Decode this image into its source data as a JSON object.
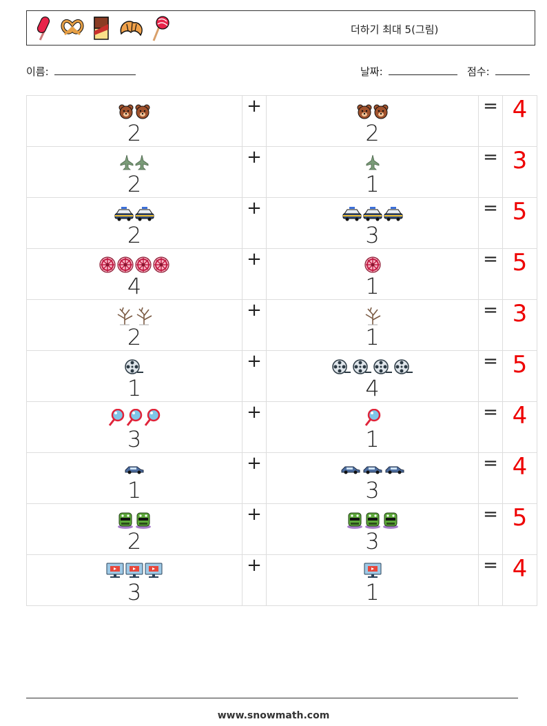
{
  "header": {
    "title": "더하기 최대 5(그림)",
    "icons": [
      "popsicle-icon",
      "pretzel-icon",
      "chocolate-icon",
      "croissant-icon",
      "lollipop-icon"
    ]
  },
  "meta": {
    "name_label": "이름:",
    "date_label": "날짜:",
    "score_label": "점수:"
  },
  "operators": {
    "plus": "+",
    "equals": "="
  },
  "colors": {
    "answer": "#e00000",
    "grid": "#dddddd"
  },
  "problems": [
    {
      "icon": "bear",
      "a": "2",
      "b": "2",
      "answer": "4"
    },
    {
      "icon": "jet",
      "a": "2",
      "b": "1",
      "answer": "3"
    },
    {
      "icon": "police-car",
      "a": "2",
      "b": "3",
      "answer": "5"
    },
    {
      "icon": "wheel",
      "a": "4",
      "b": "1",
      "answer": "5"
    },
    {
      "icon": "bare-tree",
      "a": "2",
      "b": "1",
      "answer": "3"
    },
    {
      "icon": "film-reel",
      "a": "1",
      "b": "4",
      "answer": "5"
    },
    {
      "icon": "magnifier",
      "a": "3",
      "b": "1",
      "answer": "4"
    },
    {
      "icon": "car",
      "a": "1",
      "b": "3",
      "answer": "4"
    },
    {
      "icon": "monster",
      "a": "2",
      "b": "3",
      "answer": "5"
    },
    {
      "icon": "monitor",
      "a": "3",
      "b": "1",
      "answer": "4"
    }
  ],
  "footer": {
    "url": "www.snowmath.com"
  }
}
